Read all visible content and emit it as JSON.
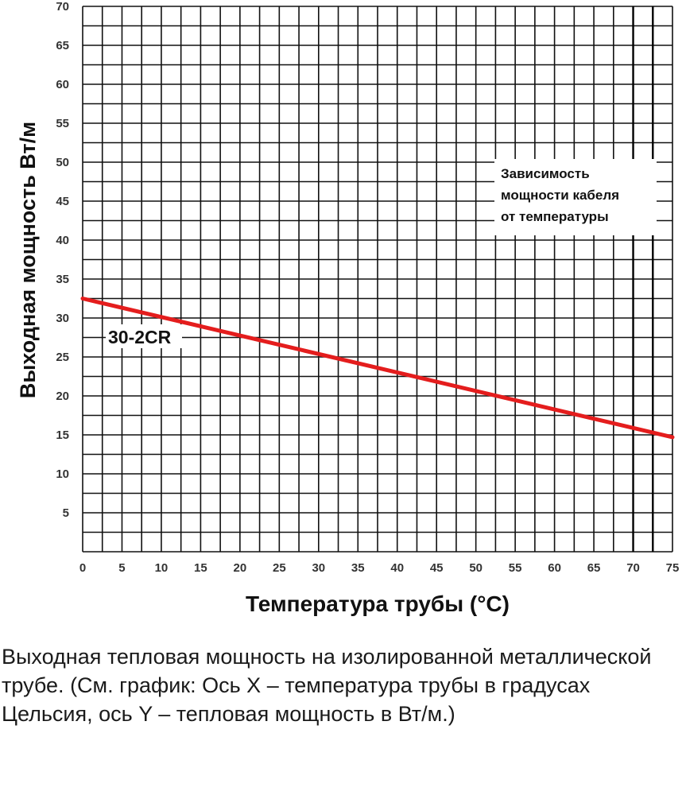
{
  "chart_data": {
    "type": "line",
    "xlabel": "Температура трубы (°C)",
    "ylabel": "Выходная мощность Вт/м",
    "xlim": [
      0,
      75
    ],
    "ylim": [
      0,
      70
    ],
    "x_ticks": [
      "0",
      "5",
      "10",
      "15",
      "20",
      "25",
      "30",
      "35",
      "40",
      "45",
      "50",
      "55",
      "60",
      "65",
      "70",
      "75"
    ],
    "y_ticks": [
      "5",
      "10",
      "15",
      "20",
      "25",
      "30",
      "35",
      "40",
      "45",
      "50",
      "55",
      "60",
      "65",
      "70"
    ],
    "grid": true,
    "legend_box": {
      "lines": [
        "Зависимость",
        "мощности кабеля",
        "от температуры"
      ],
      "placement": "upper-right"
    },
    "series": [
      {
        "name": "30-2CR",
        "color": "#e41d1d",
        "x": [
          0,
          75
        ],
        "y": [
          32.5,
          14.7
        ]
      }
    ],
    "reference_lines_x": [
      70,
      72.5
    ]
  },
  "caption": "Выходная тепловая мощность на изолированной металлической трубе. (См. график: Ось X – температура трубы в градусах Цельсия, ось Y – тепловая мощность в Вт/м.)"
}
